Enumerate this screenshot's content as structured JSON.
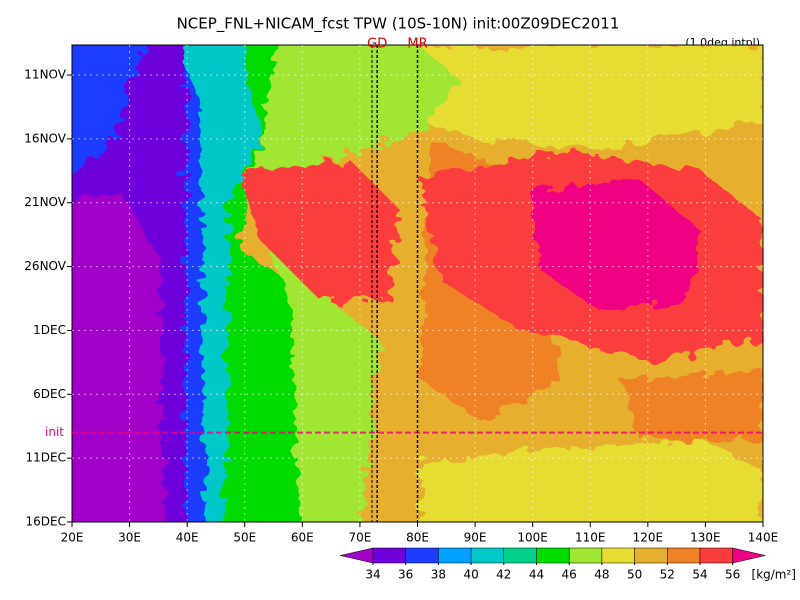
{
  "chart_data": {
    "type": "hovmoller",
    "title": "NCEP_FNL+NICAM_fcst TPW (10S-10N) init:00Z09DEC2011",
    "subtitle": "(1.0deg intpl)",
    "xlim": [
      20,
      140
    ],
    "xticks": [
      {
        "value": 20,
        "label": "20E"
      },
      {
        "value": 30,
        "label": "30E"
      },
      {
        "value": 40,
        "label": "40E"
      },
      {
        "value": 50,
        "label": "50E"
      },
      {
        "value": 60,
        "label": "60E"
      },
      {
        "value": 70,
        "label": "70E"
      },
      {
        "value": 80,
        "label": "80E"
      },
      {
        "value": 90,
        "label": "90E"
      },
      {
        "value": 100,
        "label": "100E"
      },
      {
        "value": 110,
        "label": "110E"
      },
      {
        "value": 120,
        "label": "120E"
      },
      {
        "value": 130,
        "label": "130E"
      },
      {
        "value": 140,
        "label": "140E"
      }
    ],
    "y_categories": [
      "11NOV",
      "16NOV",
      "21NOV",
      "26NOV",
      "1DEC",
      "6DEC",
      "11DEC",
      "16DEC"
    ],
    "markers": [
      {
        "label": "GD",
        "x": 73
      },
      {
        "label": "MR",
        "x": 80
      }
    ],
    "init_label": "init",
    "colorbar": {
      "levels": [
        34,
        36,
        38,
        40,
        42,
        44,
        46,
        48,
        50,
        52,
        54,
        56
      ],
      "colors": [
        "#a000c8",
        "#6e00dc",
        "#1e3cff",
        "#00a0ff",
        "#00c8c8",
        "#00d28c",
        "#00dc00",
        "#a0e632",
        "#e6dc32",
        "#e6af2d",
        "#f08228",
        "#fa3c3c",
        "#f00082"
      ],
      "unit": "[kg/m²]"
    }
  }
}
